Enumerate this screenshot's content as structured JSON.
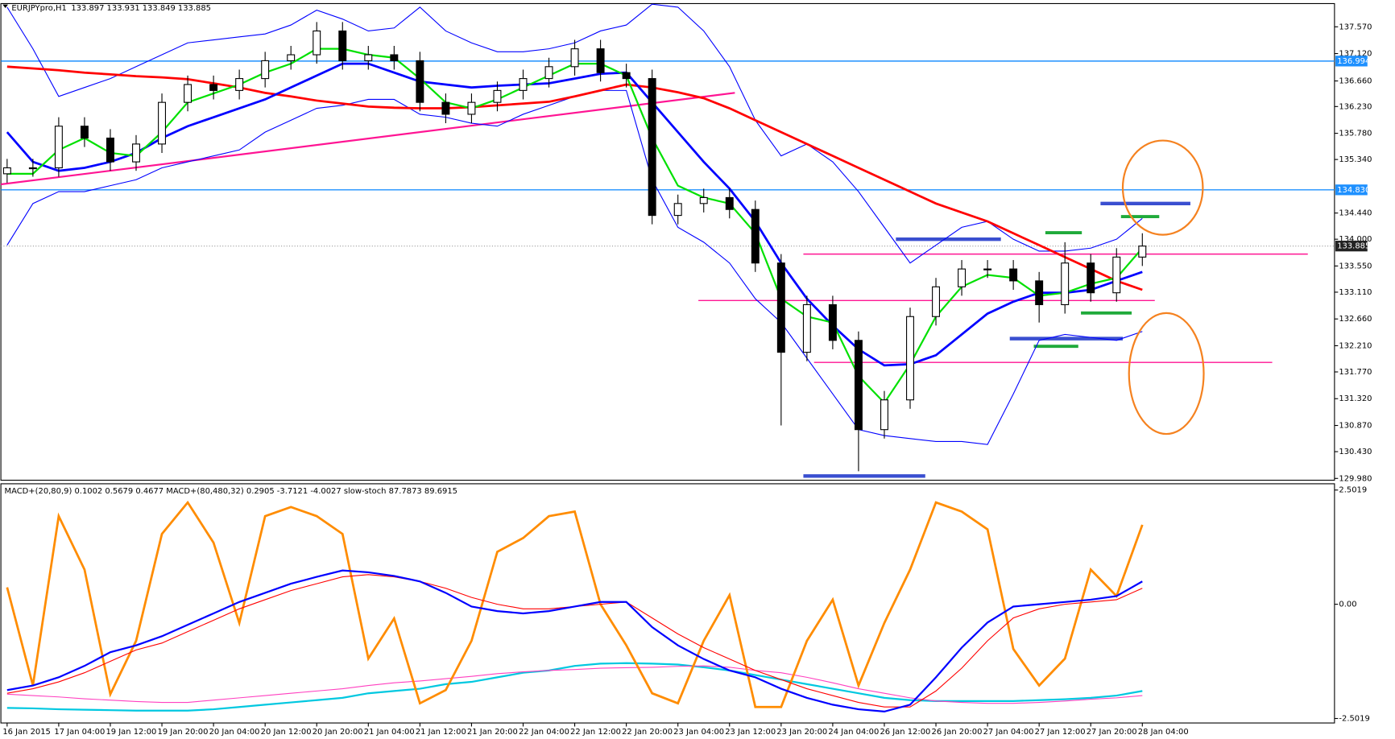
{
  "chart_data": [
    {
      "type": "candlestick",
      "title": "EURJPYpro,H1",
      "ohlc_header": [
        133.897,
        133.931,
        133.849,
        133.885
      ],
      "categories": [
        "16 Jan 2015",
        null,
        "17 Jan 04:00",
        null,
        "19 Jan 12:00",
        null,
        "19 Jan 20:00",
        null,
        "20 Jan 04:00",
        null,
        "20 Jan 12:00",
        null,
        "20 Jan 20:00",
        null,
        "21 Jan 04:00",
        null,
        "21 Jan 12:00",
        null,
        "21 Jan 20:00",
        null,
        "22 Jan 04:00",
        null,
        "22 Jan 12:00",
        null,
        "22 Jan 20:00",
        null,
        "23 Jan 04:00",
        null,
        "23 Jan 12:00",
        null,
        "23 Jan 20:00",
        null,
        "24 Jan 04:00",
        null,
        "26 Jan 12:00",
        null,
        "26 Jan 20:00",
        null,
        "27 Jan 04:00",
        null,
        "27 Jan 12:00",
        null,
        "27 Jan 20:00",
        null,
        "28 Jan 04:00"
      ],
      "open": [
        135.1,
        135.2,
        135.2,
        135.9,
        135.7,
        135.3,
        135.6,
        136.3,
        136.6,
        136.5,
        136.7,
        137.0,
        137.1,
        137.5,
        137.0,
        137.1,
        137.0,
        136.3,
        136.1,
        136.3,
        136.5,
        136.7,
        136.9,
        137.2,
        136.8,
        136.7,
        134.4,
        134.6,
        134.7,
        134.5,
        133.6,
        132.1,
        132.9,
        132.3,
        130.8,
        131.3,
        132.7,
        133.2,
        133.5,
        133.5,
        133.3,
        132.9,
        133.6,
        133.1,
        133.7
      ],
      "high": [
        135.35,
        135.35,
        136.05,
        136.05,
        135.85,
        135.75,
        136.45,
        136.75,
        136.75,
        136.85,
        137.15,
        137.25,
        137.65,
        137.65,
        137.25,
        137.25,
        137.15,
        136.45,
        136.45,
        136.65,
        136.85,
        137.05,
        137.35,
        137.35,
        136.95,
        136.85,
        134.75,
        134.85,
        134.85,
        134.65,
        133.75,
        133.05,
        133.05,
        132.45,
        131.45,
        132.85,
        133.35,
        133.65,
        133.65,
        133.65,
        133.45,
        133.95,
        133.75,
        133.85,
        134.1
      ],
      "low": [
        134.95,
        135.05,
        135.05,
        135.55,
        135.15,
        135.15,
        135.45,
        136.15,
        136.35,
        136.35,
        136.55,
        136.85,
        136.95,
        136.85,
        136.85,
        136.85,
        136.15,
        135.95,
        135.95,
        136.15,
        136.35,
        136.55,
        136.75,
        136.65,
        136.55,
        134.25,
        134.25,
        134.45,
        134.35,
        133.45,
        130.87,
        131.95,
        132.15,
        130.1,
        130.65,
        131.15,
        132.55,
        133.05,
        133.35,
        133.15,
        132.6,
        132.75,
        132.95,
        132.95,
        133.55
      ],
      "close": [
        135.2,
        135.2,
        135.9,
        135.7,
        135.3,
        135.6,
        136.3,
        136.6,
        136.5,
        136.7,
        137.0,
        137.1,
        137.5,
        137.0,
        137.1,
        137.0,
        136.3,
        136.1,
        136.3,
        136.5,
        136.7,
        136.9,
        137.2,
        136.8,
        136.7,
        134.4,
        134.6,
        134.7,
        134.5,
        133.6,
        132.1,
        132.9,
        132.3,
        130.8,
        131.3,
        132.7,
        133.2,
        133.5,
        133.5,
        133.3,
        132.9,
        133.6,
        133.1,
        133.7,
        133.885
      ],
      "series": [
        {
          "color": "#0000ff",
          "width": 1,
          "values": [
            137.9,
            137.2,
            136.4,
            136.55,
            136.7,
            136.9,
            137.1,
            137.3,
            137.35,
            137.4,
            137.45,
            137.6,
            137.85,
            137.7,
            137.5,
            137.55,
            137.9,
            137.5,
            137.3,
            137.15,
            137.15,
            137.2,
            137.3,
            137.5,
            137.6,
            137.95,
            137.9,
            137.5,
            136.9,
            136.0,
            135.4,
            135.6,
            135.3,
            134.8,
            134.2,
            133.6,
            133.9,
            134.2,
            134.3,
            134.0,
            133.8,
            133.8,
            133.85,
            134.0,
            134.35
          ]
        },
        {
          "color": "#0000ff",
          "width": 1,
          "values": [
            133.9,
            134.6,
            134.8,
            134.8,
            134.9,
            135.0,
            135.2,
            135.3,
            135.4,
            135.5,
            135.8,
            136.0,
            136.2,
            136.25,
            136.35,
            136.35,
            136.1,
            136.05,
            135.95,
            135.9,
            136.1,
            136.25,
            136.4,
            136.5,
            136.5,
            135.0,
            134.2,
            133.95,
            133.6,
            133.0,
            132.6,
            132.0,
            131.4,
            130.8,
            130.7,
            130.65,
            130.6,
            130.6,
            130.55,
            131.4,
            132.3,
            132.4,
            132.35,
            132.3,
            132.45
          ]
        },
        {
          "color": "#ff0000",
          "width": 2.5,
          "values": [
            136.9,
            136.87,
            136.84,
            136.8,
            136.77,
            136.74,
            136.72,
            136.69,
            136.62,
            136.55,
            136.46,
            136.4,
            136.33,
            136.28,
            136.23,
            136.21,
            136.2,
            136.2,
            136.22,
            136.25,
            136.28,
            136.31,
            136.4,
            136.5,
            136.6,
            136.55,
            136.47,
            136.37,
            136.2,
            136.0,
            135.8,
            135.6,
            135.4,
            135.2,
            135.0,
            134.8,
            134.6,
            134.45,
            134.3,
            134.1,
            133.9,
            133.7,
            133.5,
            133.3,
            133.15
          ]
        },
        {
          "color": "#0000ff",
          "width": 2.5,
          "values": [
            135.8,
            135.3,
            135.15,
            135.2,
            135.3,
            135.45,
            135.7,
            135.9,
            136.05,
            136.2,
            136.35,
            136.55,
            136.75,
            136.95,
            136.95,
            136.8,
            136.65,
            136.6,
            136.55,
            136.58,
            136.6,
            136.62,
            136.7,
            136.78,
            136.8,
            136.3,
            135.8,
            135.3,
            134.85,
            134.3,
            133.6,
            133.0,
            132.55,
            132.15,
            131.88,
            131.9,
            132.05,
            132.4,
            132.75,
            132.95,
            133.1,
            133.1,
            133.15,
            133.3,
            133.45
          ]
        },
        {
          "color": "#00e000",
          "width": 2,
          "values": [
            135.1,
            135.1,
            135.5,
            135.7,
            135.45,
            135.4,
            135.8,
            136.3,
            136.45,
            136.6,
            136.8,
            136.95,
            137.2,
            137.2,
            137.1,
            137.05,
            136.7,
            136.3,
            136.2,
            136.35,
            136.55,
            136.75,
            136.95,
            136.95,
            136.75,
            135.7,
            134.9,
            134.7,
            134.6,
            134.1,
            133.0,
            132.7,
            132.6,
            131.7,
            131.25,
            131.9,
            132.7,
            133.2,
            133.4,
            133.35,
            133.05,
            133.1,
            133.25,
            133.35,
            133.85
          ]
        }
      ],
      "trendline": [
        134.92,
        136.46
      ],
      "trendline_color": "#ff1493",
      "levels": [
        133.75,
        132.97,
        131.93
      ],
      "levels_color": "#ff1493",
      "blue_marks": [
        130.02,
        134.0,
        132.33,
        134.6
      ],
      "blue_marks_color": "#3a4fd0",
      "green_marks": [
        134.11,
        134.38,
        132.76,
        132.2
      ],
      "green_marks_color": "#1faa3a",
      "hlines": [
        {
          "value": 136.994,
          "color": "#1e90ff"
        },
        {
          "value": 134.83,
          "label": "134.830",
          "color": "#1e90ff"
        }
      ],
      "bid": 133.885,
      "ylim": [
        129.95,
        137.96
      ],
      "yticks": [
        {
          "value": 137.57,
          "label": "137.570"
        },
        {
          "value": 137.12,
          "label": "137.120"
        },
        {
          "value": 136.66,
          "label": "136.660"
        },
        {
          "value": 136.23,
          "label": "136.230"
        },
        {
          "value": 135.78,
          "label": "135.780"
        },
        {
          "value": 135.34,
          "label": "135.340"
        },
        {
          "value": 134.44,
          "label": "134.440"
        },
        {
          "value": 134.0,
          "label": "134.000"
        },
        {
          "value": 133.55,
          "label": "133.550"
        },
        {
          "value": 133.11,
          "label": "133.110"
        },
        {
          "value": 132.66,
          "label": "132.660"
        },
        {
          "value": 132.21,
          "label": "132.210"
        },
        {
          "value": 131.77,
          "label": "131.770"
        },
        {
          "value": 131.32,
          "label": "131.320"
        },
        {
          "value": 130.87,
          "label": "130.870"
        },
        {
          "value": 130.43,
          "label": "130.430"
        },
        {
          "value": 129.98,
          "label": "129.980"
        }
      ]
    },
    {
      "type": "line",
      "title": "MACD+(20,80,9) 0.1002 0.5679 0.4677  MACD+(80,480,32) 0.2905 -3.7121 -4.0027  slow-stoch 87.7873 89.6915",
      "ylim": [
        -2.6,
        2.62
      ],
      "yticks": [
        2.5019,
        {
          "value": 0,
          "label": "0.00"
        },
        -2.5019
      ],
      "series": [
        {
          "color": "#00c8e0",
          "width": 2,
          "values": [
            -2.27,
            -2.28,
            -2.3,
            -2.31,
            -2.32,
            -2.33,
            -2.33,
            -2.33,
            -2.3,
            -2.25,
            -2.2,
            -2.15,
            -2.1,
            -2.05,
            -1.95,
            -1.9,
            -1.85,
            -1.75,
            -1.7,
            -1.6,
            -1.5,
            -1.45,
            -1.35,
            -1.3,
            -1.29,
            -1.3,
            -1.32,
            -1.38,
            -1.45,
            -1.55,
            -1.65,
            -1.75,
            -1.85,
            -1.95,
            -2.05,
            -2.1,
            -2.12,
            -2.12,
            -2.12,
            -2.12,
            -2.1,
            -2.08,
            -2.05,
            -2.0,
            -1.9
          ]
        },
        {
          "color": "#ff40c0",
          "width": 1,
          "values": [
            -1.97,
            -2.0,
            -2.03,
            -2.07,
            -2.1,
            -2.13,
            -2.15,
            -2.15,
            -2.1,
            -2.05,
            -2.0,
            -1.95,
            -1.9,
            -1.85,
            -1.78,
            -1.72,
            -1.68,
            -1.63,
            -1.58,
            -1.52,
            -1.48,
            -1.45,
            -1.43,
            -1.4,
            -1.39,
            -1.38,
            -1.36,
            -1.35,
            -1.38,
            -1.45,
            -1.5,
            -1.6,
            -1.72,
            -1.85,
            -1.95,
            -2.05,
            -2.12,
            -2.15,
            -2.17,
            -2.17,
            -2.15,
            -2.12,
            -2.08,
            -2.05,
            -2.0
          ]
        },
        {
          "color": "#ff8c00",
          "width": 2.5,
          "values": [
            0.37,
            -1.78,
            1.93,
            0.76,
            -1.97,
            -0.8,
            1.54,
            2.23,
            1.35,
            -0.41,
            1.93,
            2.13,
            1.93,
            1.54,
            -1.19,
            -0.31,
            -2.17,
            -1.88,
            -0.8,
            1.15,
            1.45,
            1.93,
            2.03,
            0.0,
            -0.9,
            -1.95,
            -2.17,
            -0.8,
            0.2,
            -2.25,
            -2.25,
            -0.8,
            0.1,
            -1.78,
            -0.41,
            0.76,
            2.23,
            2.03,
            1.64,
            -0.98,
            -1.78,
            -1.19,
            0.76,
            0.18,
            1.74
          ]
        },
        {
          "color": "#ff0000",
          "width": 1,
          "values": [
            -1.95,
            -1.85,
            -1.7,
            -1.5,
            -1.25,
            -1.0,
            -0.85,
            -0.6,
            -0.35,
            -0.1,
            0.1,
            0.3,
            0.45,
            0.6,
            0.65,
            0.6,
            0.5,
            0.35,
            0.15,
            0.0,
            -0.1,
            -0.1,
            -0.05,
            0.0,
            0.05,
            -0.3,
            -0.65,
            -0.95,
            -1.2,
            -1.45,
            -1.65,
            -1.85,
            -2.0,
            -2.15,
            -2.25,
            -2.25,
            -1.9,
            -1.4,
            -0.8,
            -0.3,
            -0.1,
            0.0,
            0.05,
            0.1,
            0.35
          ]
        },
        {
          "color": "#0000ff",
          "width": 2,
          "values": [
            -1.88,
            -1.78,
            -1.6,
            -1.35,
            -1.05,
            -0.9,
            -0.7,
            -0.45,
            -0.2,
            0.05,
            0.25,
            0.45,
            0.6,
            0.74,
            0.7,
            0.62,
            0.5,
            0.25,
            -0.05,
            -0.15,
            -0.2,
            -0.15,
            -0.05,
            0.05,
            0.05,
            -0.5,
            -0.9,
            -1.2,
            -1.45,
            -1.6,
            -1.85,
            -2.05,
            -2.2,
            -2.3,
            -2.35,
            -2.2,
            -1.6,
            -0.95,
            -0.4,
            -0.05,
            0.0,
            0.05,
            0.1,
            0.18,
            0.5
          ]
        }
      ]
    }
  ]
}
